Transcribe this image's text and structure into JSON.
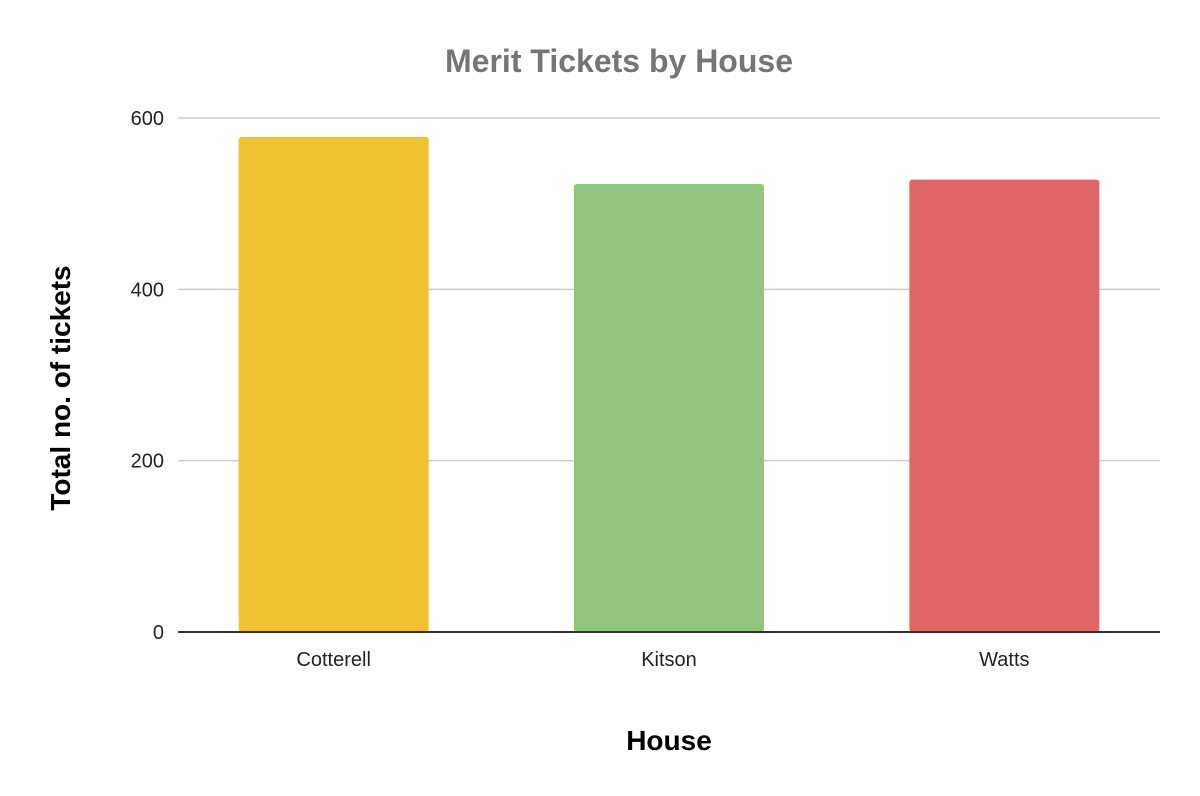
{
  "chart_data": {
    "type": "bar",
    "title": "Merit Tickets by House",
    "xlabel": "House",
    "ylabel": "Total no. of tickets",
    "categories": [
      "Cotterell",
      "Kitson",
      "Watts"
    ],
    "values": [
      578,
      523,
      528
    ],
    "bar_colors": [
      "#F0C232",
      "#93C47D",
      "#E06666"
    ],
    "ylim": [
      0,
      600
    ],
    "yticks": [
      0,
      200,
      400,
      600
    ],
    "grid": true,
    "legend": "none"
  },
  "colors": {
    "title": "#757575",
    "axis_title": "#000000",
    "tick_label": "#222222",
    "grid": "#CCCCCC",
    "baseline": "#333333"
  }
}
